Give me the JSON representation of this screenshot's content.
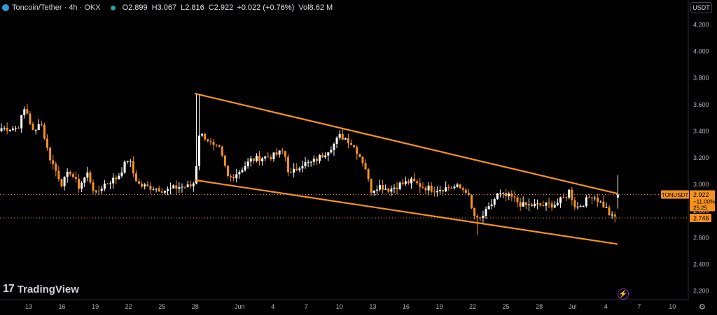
{
  "header": {
    "symbol_title": "Toncoin/Tether · 4h · OKX",
    "open_label": "O",
    "open": "2.899",
    "high_label": "H",
    "high": "3.067",
    "low_label": "L",
    "low": "2.816",
    "close_label": "C",
    "close": "2.922",
    "change": "+0.022 (+0.76%)",
    "volume_label": "Vol",
    "volume": "8.62 M"
  },
  "currency_selector": "USDT",
  "brand": {
    "mark": "17",
    "name": "TradingView"
  },
  "chart_data": {
    "type": "candlestick",
    "symbol": "TONUSDT",
    "y_ticks": [
      "4.200",
      "4.000",
      "3.800",
      "3.600",
      "3.400",
      "3.200",
      "3.000",
      "2.800",
      "2.600",
      "2.400",
      "2.200"
    ],
    "ylim": [
      2.13,
      4.33
    ],
    "x_ticks": [
      "13",
      "16",
      "19",
      "22",
      "25",
      "28",
      "Jun",
      "4",
      "7",
      "10",
      "13",
      "16",
      "19",
      "22",
      "25",
      "28",
      "Jul",
      "4",
      "7",
      "10"
    ],
    "price_label": {
      "symbol": "TONUSDT",
      "price": "2.922",
      "change": "−11.00%",
      "countdown": "25:25"
    },
    "level_label": "2.746",
    "price_level": 2.922,
    "support_level": 2.746,
    "trendlines": [
      {
        "name": "upper",
        "from": [
          "May 28",
          3.68
        ],
        "to": [
          "Jul 5",
          2.93
        ]
      },
      {
        "name": "lower",
        "from": [
          "May 28",
          3.03
        ],
        "to": [
          "Jul 5",
          2.55
        ]
      }
    ],
    "colors": {
      "up": "#ffffff",
      "down": "#f7931a",
      "trendline": "#f7931a",
      "price_line": "#f7931a"
    },
    "anchors": [
      [
        "May 12",
        3.42
      ],
      [
        "May 12.7",
        3.58
      ],
      [
        "May 13.5",
        3.36
      ],
      [
        "May 14",
        3.5
      ],
      [
        "May 14.8",
        3.22
      ],
      [
        "May 16",
        3.0
      ],
      [
        "May 16.7",
        3.1
      ],
      [
        "May 17.5",
        2.98
      ],
      [
        "May 18.3",
        3.08
      ],
      [
        "May 19",
        2.92
      ],
      [
        "May 19.8",
        3.0
      ],
      [
        "May 21",
        3.05
      ],
      [
        "May 22",
        3.2
      ],
      [
        "May 22.5",
        3.06
      ],
      [
        "May 23",
        2.99
      ],
      [
        "May 24.5",
        2.97
      ],
      [
        "May 25.4",
        2.95
      ],
      [
        "May 26.5",
        2.98
      ],
      [
        "May 27.5",
        2.98
      ],
      [
        "May 28",
        3.02
      ],
      [
        "May 28.3",
        3.38
      ],
      [
        "May 29",
        3.35
      ],
      [
        "May 29.6",
        3.28
      ],
      [
        "May 30.2",
        3.26
      ],
      [
        "May 31",
        3.04
      ],
      [
        "Jun 1",
        3.1
      ],
      [
        "Jun 2",
        3.18
      ],
      [
        "Jun 3",
        3.2
      ],
      [
        "Jun 4",
        3.21
      ],
      [
        "Jun 5",
        3.25
      ],
      [
        "Jun 5.5",
        3.06
      ],
      [
        "Jun 6.5",
        3.15
      ],
      [
        "Jun 7.5",
        3.16
      ],
      [
        "Jun 8.5",
        3.22
      ],
      [
        "Jun 9.5",
        3.3
      ],
      [
        "Jun 10",
        3.36
      ],
      [
        "Jun 10.7",
        3.34
      ],
      [
        "Jun 11.5",
        3.26
      ],
      [
        "Jun 12.3",
        3.14
      ],
      [
        "Jun 12.8",
        2.95
      ],
      [
        "Jun 13.5",
        2.99
      ],
      [
        "Jun 14.5",
        2.96
      ],
      [
        "Jun 15.5",
        3.0
      ],
      [
        "Jun 16.5",
        3.02
      ],
      [
        "Jun 17.5",
        2.98
      ],
      [
        "Jun 18.5",
        2.96
      ],
      [
        "Jun 19.5",
        2.97
      ],
      [
        "Jun 20.5",
        2.98
      ],
      [
        "Jun 21.5",
        2.95
      ],
      [
        "Jun 22",
        2.78
      ],
      [
        "Jun 22.5",
        2.72
      ],
      [
        "Jun 23.5",
        2.82
      ],
      [
        "Jun 24.2",
        2.92
      ],
      [
        "Jun 25.5",
        2.9
      ],
      [
        "Jun 26.5",
        2.84
      ],
      [
        "Jun 27.5",
        2.84
      ],
      [
        "Jun 28.5",
        2.84
      ],
      [
        "Jun 29.5",
        2.85
      ],
      [
        "Jun 30.3",
        2.9
      ],
      [
        "Jun 30.7",
        2.95
      ],
      [
        "Jul 1.3",
        2.82
      ],
      [
        "Jul 2",
        2.86
      ],
      [
        "Jul 2.8",
        2.92
      ],
      [
        "Jul 3.3",
        2.88
      ],
      [
        "Jul 4",
        2.82
      ],
      [
        "Jul 4.5",
        2.75
      ],
      [
        "Jul 5",
        2.75
      ],
      [
        "Jul 5.3",
        2.92
      ]
    ]
  }
}
